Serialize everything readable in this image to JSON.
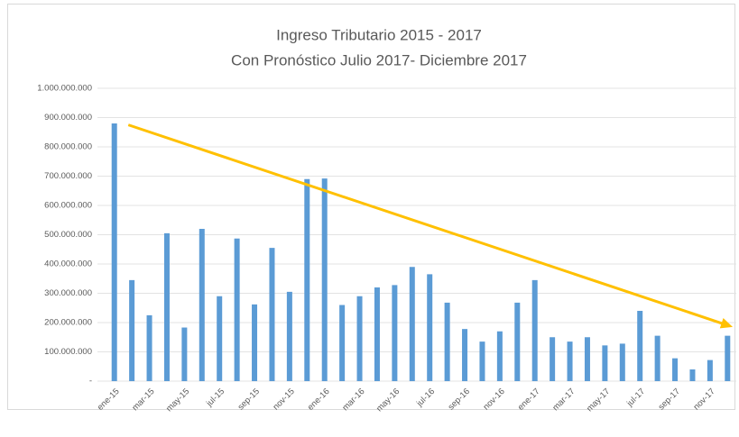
{
  "chart_data": {
    "type": "bar",
    "title": "Ingreso Tributario 2015 - 2017",
    "subtitle": "Con Pronóstico Julio 2017- Diciembre 2017",
    "categories": [
      "ene-15",
      null,
      "mar-15",
      null,
      "may-15",
      null,
      "jul-15",
      null,
      "sep-15",
      null,
      "nov-15",
      null,
      "ene-16",
      null,
      "mar-16",
      null,
      "may-16",
      null,
      "jul-16",
      null,
      "sep-16",
      null,
      "nov-16",
      null,
      "ene-17",
      null,
      "mar-17",
      null,
      "may-17",
      null,
      "jul-17",
      null,
      "sep-17",
      null,
      "nov-17",
      null
    ],
    "values": [
      880000000,
      345000000,
      225000000,
      505000000,
      183000000,
      520000000,
      290000000,
      487000000,
      262000000,
      455000000,
      305000000,
      690000000,
      692000000,
      260000000,
      290000000,
      320000000,
      328000000,
      390000000,
      365000000,
      268000000,
      178000000,
      135000000,
      170000000,
      268000000,
      345000000,
      150000000,
      135000000,
      150000000,
      122000000,
      128000000,
      240000000,
      155000000,
      78000000,
      40000000,
      72000000,
      155000000
    ],
    "color": "#5b9bd5",
    "ylim": [
      0,
      1000000000
    ],
    "yticks": [
      {
        "value": 0,
        "label": "-"
      },
      {
        "value": 100000000,
        "label": "100.000.000"
      },
      {
        "value": 200000000,
        "label": "200.000.000"
      },
      {
        "value": 300000000,
        "label": "300.000.000"
      },
      {
        "value": 400000000,
        "label": "400.000.000"
      },
      {
        "value": 500000000,
        "label": "500.000.000"
      },
      {
        "value": 600000000,
        "label": "600.000.000"
      },
      {
        "value": 700000000,
        "label": "700.000.000"
      },
      {
        "value": 800000000,
        "label": "800.000.000"
      },
      {
        "value": 900000000,
        "label": "900.000.000"
      },
      {
        "value": 1000000000,
        "label": "1.000.000.000"
      }
    ],
    "grid": true,
    "trend_arrow": {
      "color": "#ffc000",
      "values": [
        875000000,
        185000000
      ]
    }
  }
}
